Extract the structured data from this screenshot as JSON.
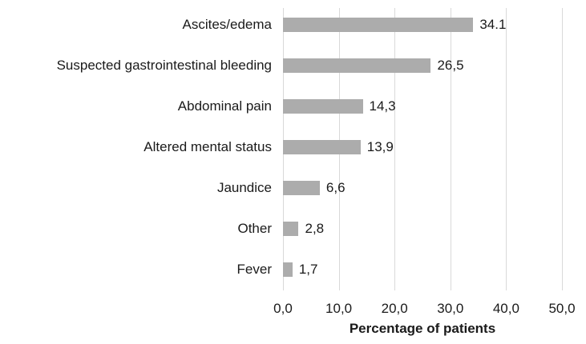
{
  "chart_data": {
    "type": "bar",
    "orientation": "horizontal",
    "categories": [
      "Ascites/edema",
      "Suspected gastrointestinal bleeding",
      "Abdominal pain",
      "Altered mental status",
      "Jaundice",
      "Other",
      "Fever"
    ],
    "values": [
      34.1,
      26.5,
      14.3,
      13.9,
      6.6,
      2.8,
      1.7
    ],
    "value_labels": [
      "34.1",
      "26,5",
      "14,3",
      "13,9",
      "6,6",
      "2,8",
      "1,7"
    ],
    "title": "",
    "xlabel": "Percentage of patients",
    "ylabel": "",
    "xlim": [
      0,
      50
    ],
    "xtick_values": [
      0,
      10,
      20,
      30,
      40,
      50
    ],
    "xtick_labels": [
      "0,0",
      "10,0",
      "20,0",
      "30,0",
      "40,0",
      "50,0"
    ],
    "grid": "vertical",
    "legend": "none",
    "colors": {
      "bar": "#acacac",
      "gridline": "#d9d9d9",
      "text": "#1a1a1a",
      "background": "#ffffff"
    }
  }
}
